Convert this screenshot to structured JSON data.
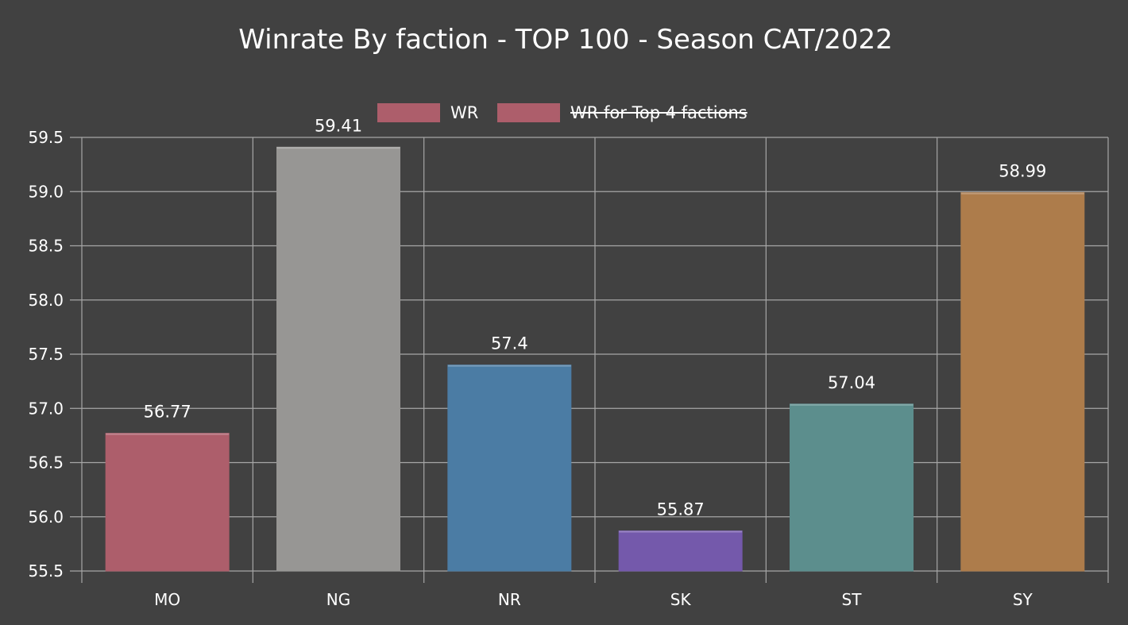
{
  "chart_data": {
    "type": "bar",
    "title": "Winrate By faction - TOP 100 - Season CAT/2022",
    "categories": [
      "MO",
      "NG",
      "NR",
      "SK",
      "ST",
      "SY"
    ],
    "series": [
      {
        "name": "WR",
        "values": [
          56.77,
          59.41,
          57.4,
          55.87,
          57.04,
          58.99
        ],
        "data_labels": [
          "56.77",
          "59.41",
          "57.4",
          "55.87",
          "57.04",
          "58.99"
        ],
        "colors": [
          "#ad5e6b",
          "#979694",
          "#4b7ca4",
          "#7459ab",
          "#5c8e8d",
          "#ad7c4b"
        ]
      },
      {
        "name": "WR for Top 4 factions",
        "hidden": true,
        "color": "#ad5e6b"
      }
    ],
    "ylim": [
      55.5,
      59.5
    ],
    "yticks": [
      "55.5",
      "56.0",
      "56.5",
      "57.0",
      "57.5",
      "58.0",
      "58.5",
      "59.0",
      "59.5"
    ],
    "grid": true,
    "legend_position": "top-center",
    "colors": {
      "background": "#414141",
      "grid": "#a6a6a6",
      "text": "#ffffff"
    }
  }
}
